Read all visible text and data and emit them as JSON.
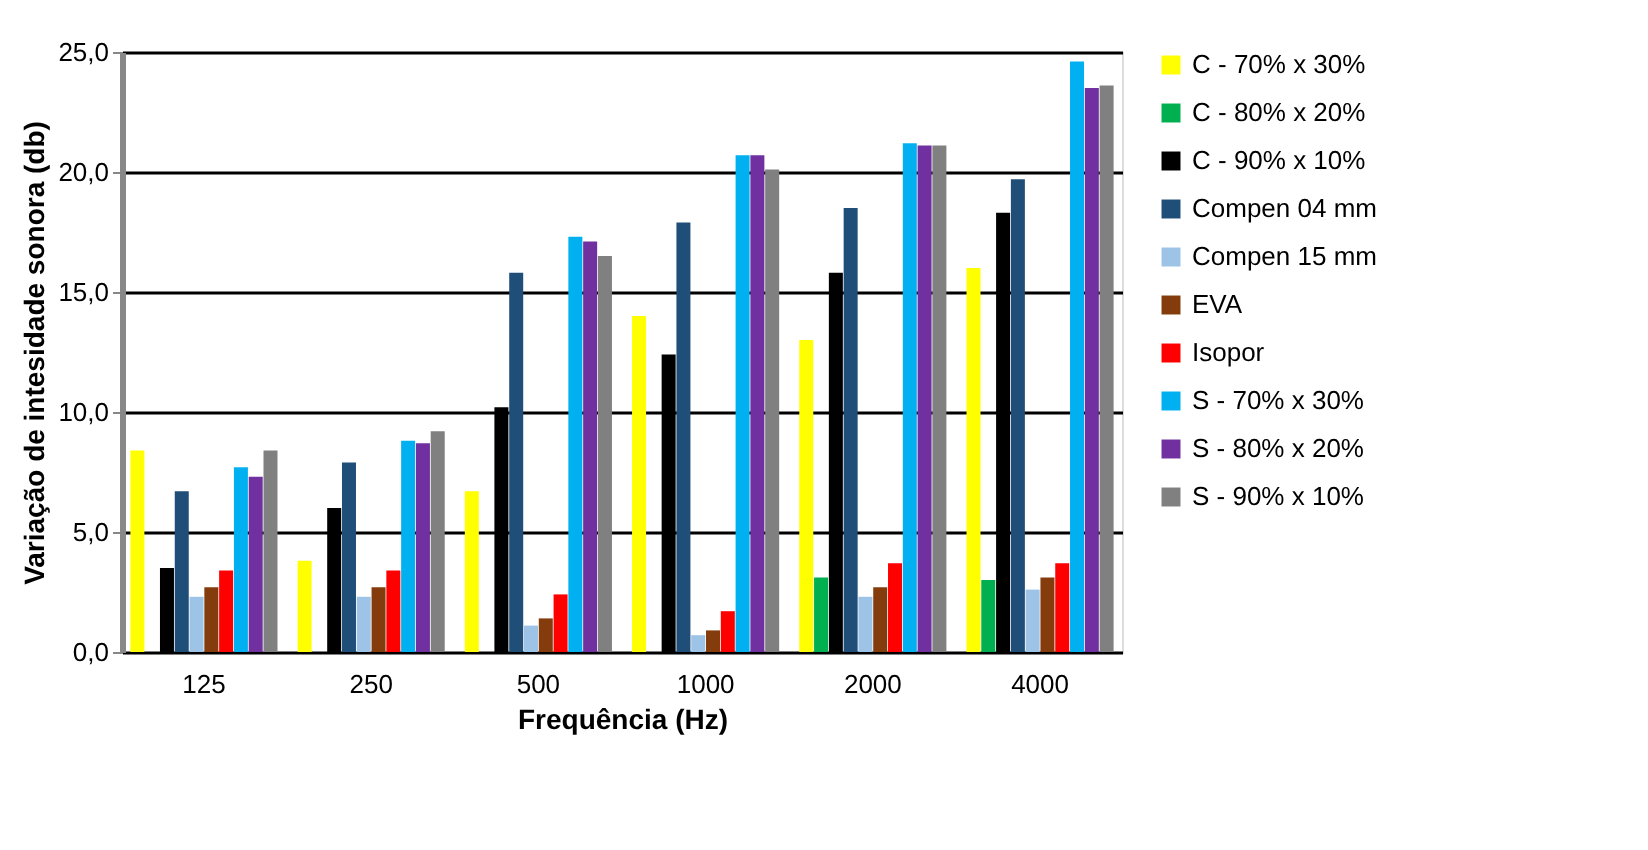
{
  "chart_data": {
    "type": "bar",
    "xlabel": "Frequência (Hz)",
    "ylabel": "Variação de intesidade sonora (db)",
    "categories": [
      "125",
      "250",
      "500",
      "1000",
      "2000",
      "4000"
    ],
    "series": [
      {
        "name": "C - 70% x 30%",
        "color": "#ffff00",
        "values": [
          8.4,
          3.8,
          6.7,
          14.0,
          13.0,
          16.0
        ]
      },
      {
        "name": "C - 80% x 20%",
        "color": "#00b050",
        "values": [
          null,
          null,
          null,
          null,
          3.1,
          3.0
        ]
      },
      {
        "name": "C - 90% x 10%",
        "color": "#000000",
        "values": [
          3.5,
          6.0,
          10.2,
          12.4,
          15.8,
          18.3
        ]
      },
      {
        "name": "Compen 04 mm",
        "color": "#1f4e79",
        "values": [
          6.7,
          7.9,
          15.8,
          17.9,
          18.5,
          19.7
        ]
      },
      {
        "name": "Compen 15 mm",
        "color": "#9dc3e6",
        "values": [
          2.3,
          2.3,
          1.1,
          0.7,
          2.3,
          2.6
        ]
      },
      {
        "name": "EVA",
        "color": "#843c0c",
        "values": [
          2.7,
          2.7,
          1.4,
          0.9,
          2.7,
          3.1
        ]
      },
      {
        "name": "Isopor",
        "color": "#ff0000",
        "values": [
          3.4,
          3.4,
          2.4,
          1.7,
          3.7,
          3.7
        ]
      },
      {
        "name": "S - 70% x 30%",
        "color": "#00b0f0",
        "values": [
          7.7,
          8.8,
          17.3,
          20.7,
          21.2,
          24.6
        ]
      },
      {
        "name": "S - 80% x 20%",
        "color": "#7030a0",
        "values": [
          7.3,
          8.7,
          17.1,
          20.7,
          21.1,
          23.5
        ]
      },
      {
        "name": "S - 90% x 10%",
        "color": "#808080",
        "values": [
          8.4,
          9.2,
          16.5,
          20.1,
          21.1,
          23.6
        ]
      }
    ],
    "ylim": [
      0,
      25
    ],
    "yticks": [
      {
        "value": 0,
        "label": "0,0"
      },
      {
        "value": 5,
        "label": "5,0"
      },
      {
        "value": 10,
        "label": "10,0"
      },
      {
        "value": 15,
        "label": "15,0"
      },
      {
        "value": 20,
        "label": "20,0"
      },
      {
        "value": 25,
        "label": "25,0"
      }
    ],
    "grid": "y",
    "legend": "right"
  }
}
